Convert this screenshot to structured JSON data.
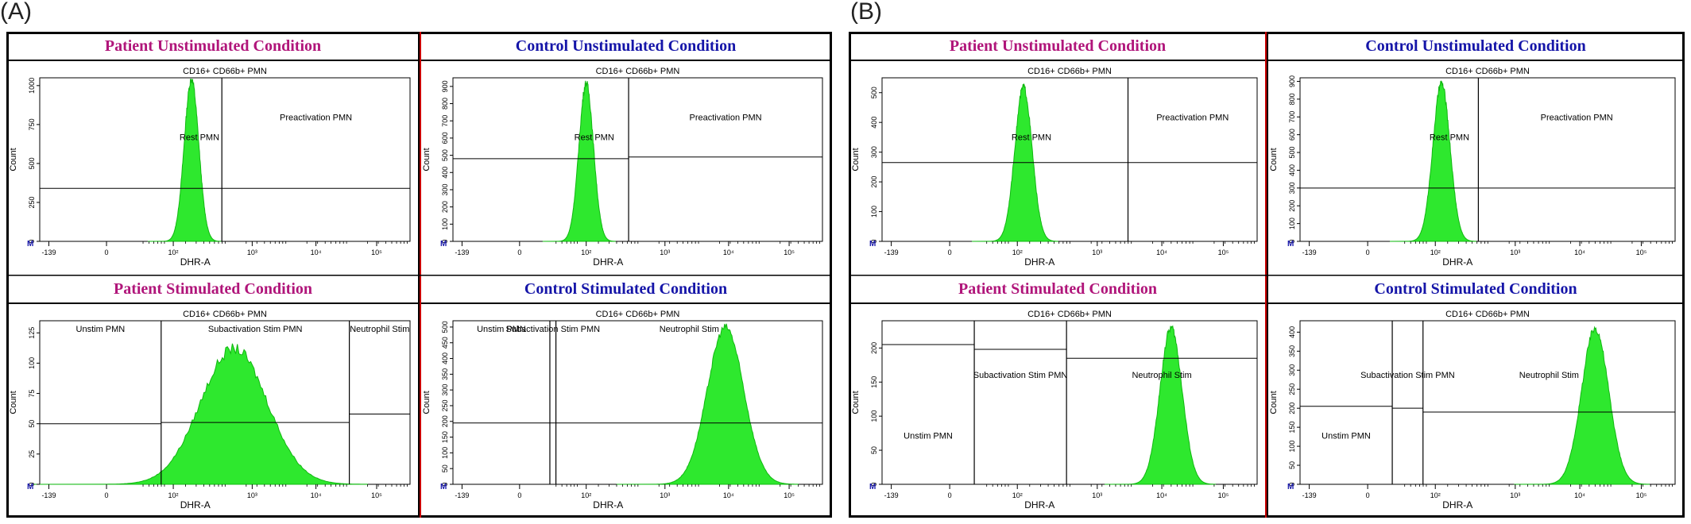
{
  "figure_labels": [
    "(A)",
    "(B)"
  ],
  "colors": {
    "patient_title": "#b0157a",
    "control_title": "#1515a8",
    "histogram_fill": "#2ee82e",
    "histogram_edge": "#11b811",
    "divider_red": "#c80000"
  },
  "common": {
    "plot_title": "CD16+ CD66b+ PMN",
    "xlabel": "DHR-A",
    "ylabel": "Count",
    "x_ticks": [
      "-139",
      "0",
      "10²",
      "10³",
      "10⁴",
      "10⁵"
    ],
    "marker_label": "M"
  },
  "chart_data": [
    {
      "panel": "A",
      "condition": "patient-unstimulated",
      "type": "area",
      "title": "Patient Unstimulated Condition",
      "ylim": [
        0,
        1050
      ],
      "y_ticks": [
        0,
        250,
        500,
        750,
        1000
      ],
      "regions": [
        "Rest PMN",
        "Preactivation PMN"
      ],
      "gates": [
        2.5
      ],
      "gate_levels": [
        340,
        340
      ],
      "peak_x": 2.0,
      "peak_height": 1040,
      "width": 0.12,
      "noise": 0.05
    },
    {
      "panel": "A",
      "condition": "control-unstimulated",
      "type": "area",
      "title": "Control Unstimulated Condition",
      "ylim": [
        0,
        950
      ],
      "y_ticks": [
        0,
        100,
        200,
        300,
        400,
        500,
        600,
        700,
        800,
        900
      ],
      "regions": [
        "Rest PMN",
        "Preactivation PMN"
      ],
      "gates": [
        2.4
      ],
      "gate_levels": [
        480,
        490
      ],
      "peak_x": 1.7,
      "peak_height": 920,
      "width": 0.12,
      "noise": 0.05
    },
    {
      "panel": "A",
      "condition": "patient-stimulated",
      "type": "area",
      "title": "Patient Stimulated Condition",
      "ylim": [
        0,
        135
      ],
      "y_ticks": [
        0,
        25,
        50,
        75,
        100,
        125
      ],
      "regions": [
        "Unstim PMN",
        "Subactivation Stim PMN",
        "Neutrophil Stim"
      ],
      "gates": [
        1.5,
        4.6
      ],
      "gate_levels": [
        50,
        51,
        58
      ],
      "peak_x": 2.7,
      "peak_height": 112,
      "width": 0.55,
      "noise": 0.08
    },
    {
      "panel": "A",
      "condition": "control-stimulated",
      "type": "area",
      "title": "Control Stimulated Condition",
      "ylim": [
        0,
        520
      ],
      "y_ticks": [
        0,
        50,
        100,
        150,
        200,
        250,
        300,
        350,
        400,
        450,
        500
      ],
      "regions": [
        "Unstim PMN",
        "Subactivation Stim PMN",
        "Neutrophil Stim"
      ],
      "gates": [
        1.1,
        1.2
      ],
      "gate_levels": [
        195,
        195,
        195
      ],
      "peak_x": 4.0,
      "peak_height": 500,
      "width": 0.3,
      "noise": 0.05
    },
    {
      "panel": "B",
      "condition": "patient-unstimulated",
      "type": "area",
      "title": "Patient Unstimulated Condition",
      "ylim": [
        0,
        550
      ],
      "y_ticks": [
        0,
        100,
        200,
        300,
        400,
        500
      ],
      "regions": [
        "Rest PMN",
        "Preactivation PMN"
      ],
      "gates": [
        3.5
      ],
      "gate_levels": [
        265,
        265
      ],
      "peak_x": 1.8,
      "peak_height": 520,
      "width": 0.14,
      "noise": 0.05
    },
    {
      "panel": "B",
      "condition": "control-unstimulated",
      "type": "area",
      "title": "Control Unstimulated Condition",
      "ylim": [
        0,
        920
      ],
      "y_ticks": [
        0,
        100,
        200,
        300,
        400,
        500,
        600,
        700,
        800,
        900
      ],
      "regions": [
        "Rest PMN",
        "Preactivation PMN"
      ],
      "gates": [
        2.4
      ],
      "gate_levels": [
        300,
        300
      ],
      "peak_x": 1.8,
      "peak_height": 890,
      "width": 0.14,
      "noise": 0.05
    },
    {
      "panel": "B",
      "condition": "patient-stimulated",
      "type": "area",
      "title": "Patient Stimulated Condition",
      "ylim": [
        0,
        240
      ],
      "y_ticks": [
        0,
        50,
        100,
        150,
        200
      ],
      "regions": [
        "Unstim PMN",
        "Subactivation Stim PMN",
        "Neutrophil Stim"
      ],
      "gates": [
        1.0,
        2.5
      ],
      "gate_levels": [
        205,
        198,
        185
      ],
      "peak_x": 4.2,
      "peak_height": 230,
      "width": 0.18,
      "noise": 0.05
    },
    {
      "panel": "B",
      "condition": "control-stimulated",
      "type": "area",
      "title": "Control Stimulated Condition",
      "ylim": [
        0,
        430
      ],
      "y_ticks": [
        0,
        50,
        100,
        150,
        200,
        250,
        300,
        350,
        400
      ],
      "regions": [
        "Unstim PMN",
        "Subactivation Stim PMN",
        "Neutrophil Stim"
      ],
      "gates": [
        1.0,
        1.5
      ],
      "gate_levels": [
        205,
        200,
        190
      ],
      "peak_x": 4.3,
      "peak_height": 410,
      "width": 0.22,
      "noise": 0.05
    }
  ]
}
